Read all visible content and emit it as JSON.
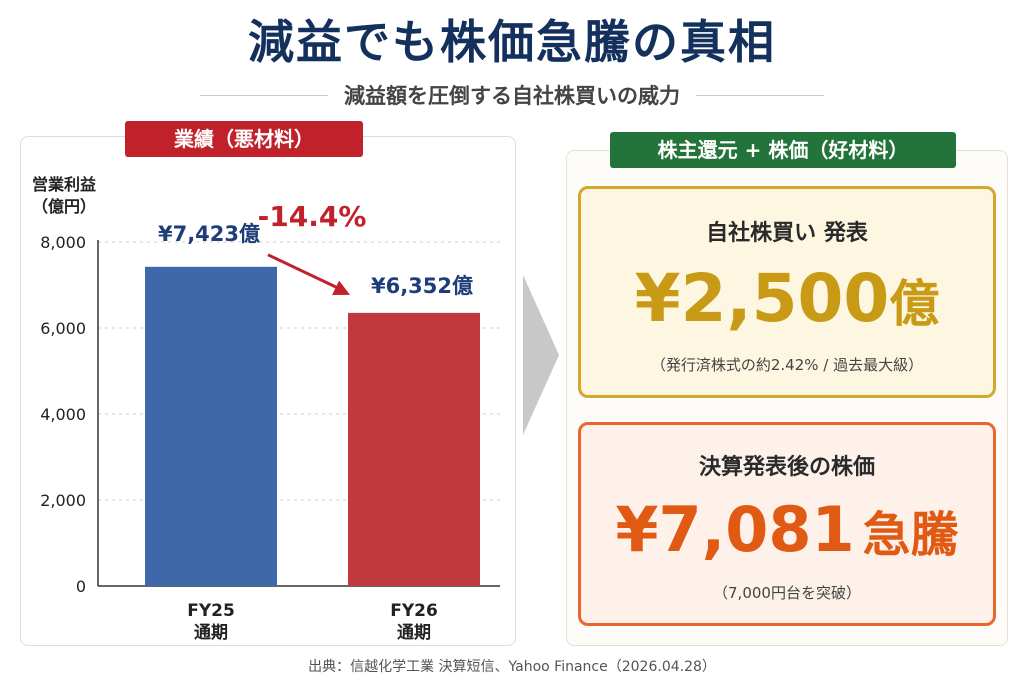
{
  "header": {
    "title": "減益でも株価急騰の真相",
    "subtitle": "減益額を圧倒する自社株買いの威力"
  },
  "left_panel": {
    "badge": "業績（悪材料）"
  },
  "right_panel": {
    "badge": "株主還元 + 株価（好材料）",
    "buyback": {
      "heading": "自社株買い 発表",
      "amount": "¥2,500",
      "unit": "億",
      "note": "（発行済株式の約2.42% / 過去最大級）"
    },
    "stock": {
      "heading": "決算発表後の株価",
      "amount": "¥7,081",
      "unit": "急騰",
      "note": "（7,000円台を突破）"
    }
  },
  "source": "出典：信越化学工業 決算短信、Yahoo Finance（2026.04.28）",
  "colors": {
    "title": "#14305c",
    "bar_fy25": "#3e68aa",
    "bar_fy26": "#c0393e",
    "change": "#c0212a",
    "gold": "#c89a16",
    "orange": "#e05a14",
    "badge_red": "#c0212a",
    "badge_green": "#23743a"
  },
  "chart_data": {
    "type": "bar",
    "ylabel": "営業利益\n（億円）",
    "categories": [
      "FY25\n通期",
      "FY26\n通期"
    ],
    "values": [
      7423,
      6352
    ],
    "value_labels": [
      "¥7,423億",
      "¥6,352億"
    ],
    "change_label": "-14.4%",
    "ylim": [
      0,
      8000
    ],
    "yticks": [
      0,
      2000,
      4000,
      6000,
      8000
    ],
    "ytick_labels": [
      "0",
      "2,000",
      "4,000",
      "6,000",
      "8,000"
    ],
    "grid": true
  }
}
